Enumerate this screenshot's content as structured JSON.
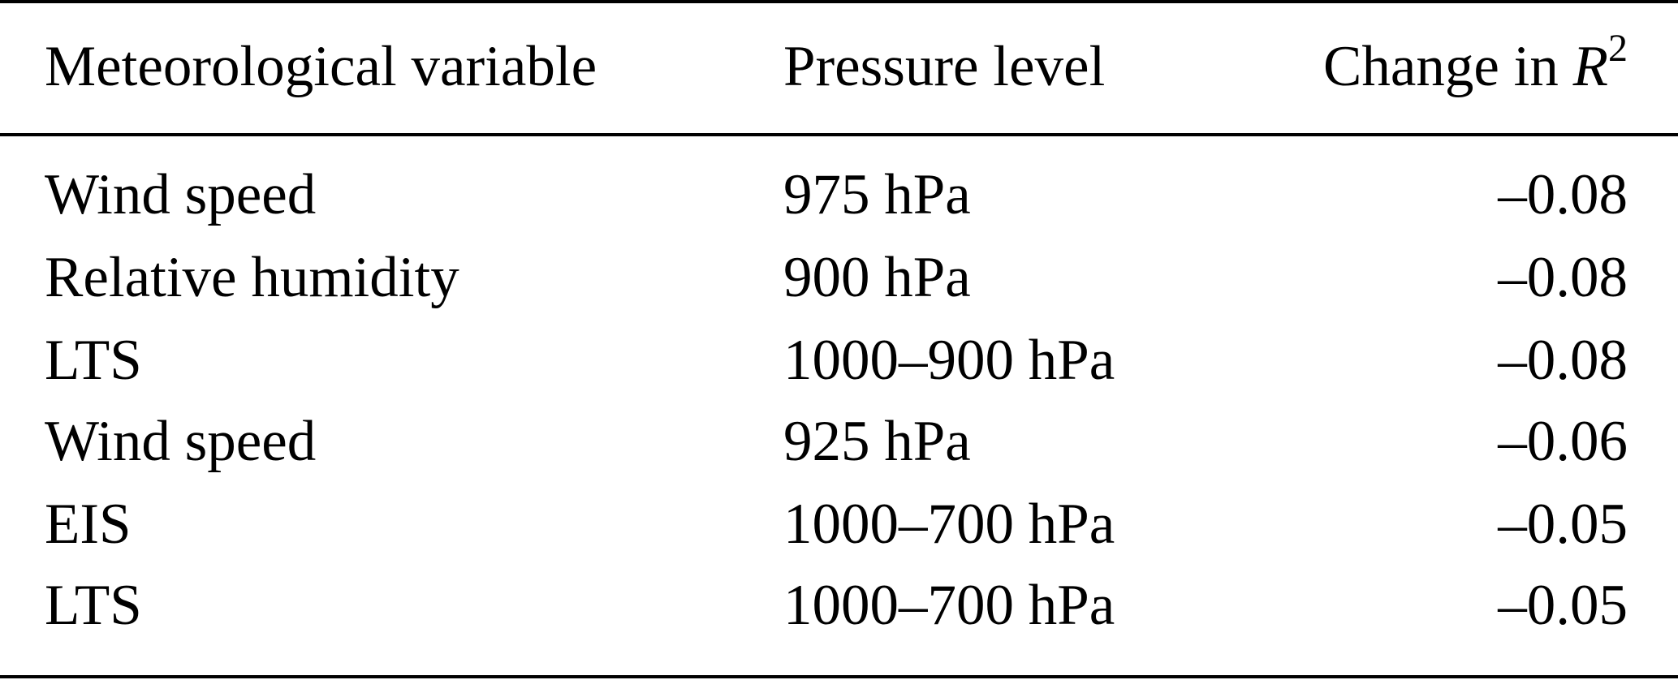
{
  "table": {
    "headers": {
      "variable": "Meteorological variable",
      "pressure": "Pressure level",
      "change_prefix": "Change in ",
      "change_symbol": "R",
      "change_superscript": "2"
    },
    "rows": [
      {
        "variable": "Wind speed",
        "pressure": "975 hPa",
        "change": "–0.08"
      },
      {
        "variable": "Relative humidity",
        "pressure": "900 hPa",
        "change": "–0.08"
      },
      {
        "variable": "LTS",
        "pressure": "1000–900 hPa",
        "change": "–0.08"
      },
      {
        "variable": "Wind speed",
        "pressure": "925 hPa",
        "change": "–0.06"
      },
      {
        "variable": "EIS",
        "pressure": "1000–700 hPa",
        "change": "–0.05"
      },
      {
        "variable": "LTS",
        "pressure": "1000–700 hPa",
        "change": "–0.05"
      }
    ]
  }
}
